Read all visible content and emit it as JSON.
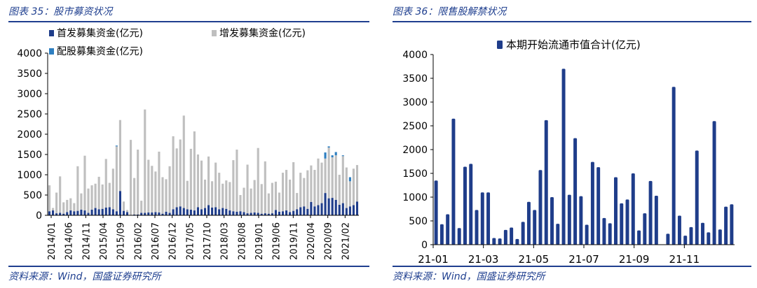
{
  "left": {
    "caption": "图表 35：股市募资状况",
    "source": "资料来源：Wind，国盛证券研究所",
    "colors": {
      "ipo": "#1f3d8a",
      "additional": "#bfbfbf",
      "rights": "#2e7fc1"
    }
  },
  "right": {
    "caption": "图表 36：限售股解禁状况",
    "source": "资料来源：Wind，国盛证券研究所",
    "colors": {
      "bar": "#1f3d8a"
    }
  },
  "chart_data": [
    {
      "type": "bar",
      "stacked": true,
      "title": "",
      "xlabel": "",
      "ylabel": "",
      "ylim": [
        0,
        4000
      ],
      "yticks": [
        0,
        500,
        1000,
        1500,
        2000,
        2500,
        3000,
        3500,
        4000
      ],
      "tick_labels": [
        "2014/01",
        "2014/06",
        "2014/11",
        "2015/04",
        "2015/09",
        "2016/02",
        "2016/07",
        "2016/12",
        "2017/05",
        "2017/10",
        "2018/03",
        "2018/08",
        "2019/01",
        "2019/06",
        "2019/11",
        "2020/04",
        "2020/09",
        "2021/02"
      ],
      "legend": [
        "首发募集资金(亿元)",
        "增发募集资金(亿元)",
        "配股募集资金(亿元)"
      ],
      "legend_position": "top",
      "categories_count": 88,
      "series": [
        {
          "name": "首发募集资金(亿元)",
          "values": [
            100,
            120,
            50,
            60,
            40,
            80,
            120,
            100,
            110,
            140,
            120,
            60,
            140,
            180,
            150,
            160,
            190,
            200,
            150,
            100,
            600,
            110,
            80,
            10,
            20,
            20,
            60,
            60,
            70,
            70,
            80,
            70,
            40,
            90,
            60,
            150,
            200,
            220,
            180,
            150,
            140,
            120,
            200,
            150,
            180,
            250,
            190,
            200,
            150,
            180,
            160,
            120,
            100,
            90,
            100,
            80,
            50,
            60,
            70,
            60,
            40,
            50,
            40,
            50,
            130,
            90,
            100,
            120,
            80,
            110,
            150,
            200,
            220,
            160,
            330,
            220,
            250,
            300,
            550,
            420,
            430,
            380,
            260,
            300,
            180,
            220,
            250,
            340
          ]
        },
        {
          "name": "增发募集资金(亿元)",
          "values": [
            640,
            60,
            510,
            900,
            280,
            300,
            300,
            200,
            1100,
            400,
            1350,
            600,
            600,
            600,
            800,
            600,
            1200,
            600,
            1000,
            1600,
            1750,
            230,
            50,
            1850,
            900,
            1600,
            300,
            2550,
            1300,
            1150,
            1000,
            1500,
            900,
            800,
            1150,
            1800,
            1450,
            1650,
            2280,
            700,
            1500,
            1950,
            1300,
            1200,
            700,
            1200,
            650,
            1100,
            900,
            600,
            700,
            700,
            1260,
            1530,
            400,
            600,
            1200,
            600,
            800,
            1600,
            730,
            1280,
            500,
            750,
            700,
            470,
            950,
            1000,
            800,
            1200,
            400,
            850,
            700,
            950,
            900,
            900,
            1150,
            1000,
            850,
            1250,
            1000,
            1100,
            740,
            1160,
            1000,
            620,
            900,
            900
          ]
        },
        {
          "name": "配股募集资金(亿元)",
          "values": [
            0,
            0,
            0,
            0,
            0,
            0,
            0,
            0,
            0,
            0,
            0,
            0,
            0,
            0,
            0,
            0,
            0,
            0,
            0,
            20,
            0,
            0,
            0,
            0,
            0,
            0,
            0,
            0,
            0,
            0,
            0,
            0,
            0,
            0,
            0,
            0,
            0,
            0,
            0,
            0,
            0,
            0,
            0,
            0,
            0,
            0,
            0,
            0,
            0,
            0,
            0,
            0,
            0,
            0,
            0,
            0,
            0,
            0,
            0,
            0,
            0,
            0,
            0,
            0,
            0,
            0,
            0,
            0,
            0,
            0,
            0,
            0,
            0,
            0,
            0,
            0,
            0,
            0,
            150,
            30,
            50,
            80,
            0,
            20,
            0,
            100,
            0,
            0
          ]
        }
      ]
    },
    {
      "type": "bar",
      "title": "",
      "xlabel": "",
      "ylabel": "",
      "ylim": [
        0,
        4000
      ],
      "yticks": [
        0,
        500,
        1000,
        1500,
        2000,
        2500,
        3000,
        3500,
        4000
      ],
      "tick_labels": [
        "21-01",
        "21-03",
        "21-05",
        "21-07",
        "21-09",
        "21-11"
      ],
      "legend": [
        "本期开始流通市值合计(亿元)"
      ],
      "legend_position": "top",
      "series": [
        {
          "name": "本期开始流通市值合计(亿元)",
          "values": [
            1350,
            430,
            640,
            2650,
            350,
            1640,
            1700,
            730,
            1100,
            1100,
            140,
            130,
            310,
            360,
            120,
            480,
            900,
            730,
            1570,
            2620,
            1000,
            440,
            3700,
            1050,
            2240,
            1020,
            420,
            1740,
            1630,
            560,
            450,
            1420,
            870,
            950,
            1500,
            300,
            660,
            1340,
            1030,
            0,
            230,
            3320,
            610,
            190,
            370,
            1980,
            460,
            260,
            2600,
            320,
            800,
            850
          ]
        }
      ]
    }
  ]
}
